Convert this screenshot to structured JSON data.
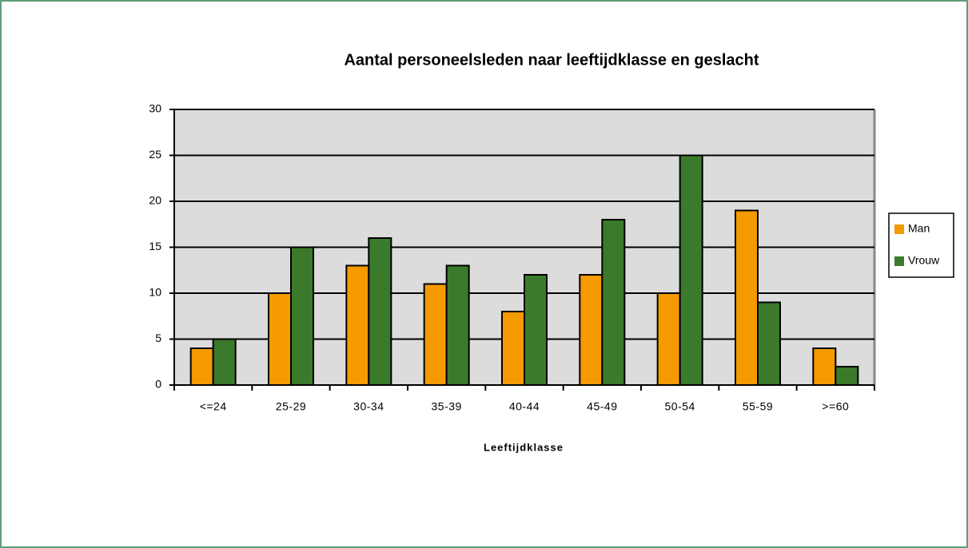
{
  "chart_data": {
    "type": "bar",
    "title": "Aantal personeelsleden naar leeftijdklasse en geslacht",
    "x_label": "Leeftijdklasse",
    "categories": [
      "<=24",
      "25-29",
      "30-34",
      "35-39",
      "40-44",
      "45-49",
      "50-54",
      "55-59",
      ">=60"
    ],
    "series": [
      {
        "name": "Man",
        "color": "#f59a00",
        "values": [
          4,
          10,
          13,
          11,
          8,
          12,
          10,
          19,
          4
        ]
      },
      {
        "name": "Vrouw",
        "color": "#3b7a2a",
        "values": [
          5,
          15,
          16,
          13,
          12,
          18,
          25,
          9,
          2
        ]
      }
    ],
    "ylim": [
      0,
      30
    ],
    "yticks": [
      0,
      5,
      10,
      15,
      20,
      25,
      30
    ],
    "grid": true,
    "legend": "right"
  }
}
